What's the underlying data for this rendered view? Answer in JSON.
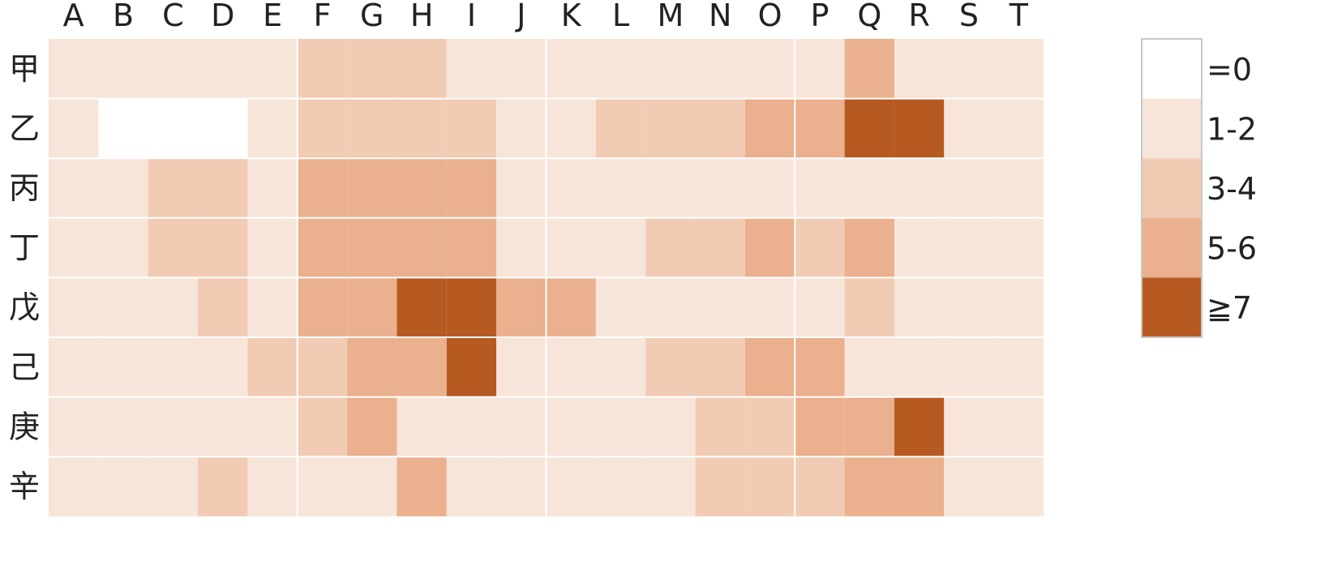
{
  "chart_data": {
    "type": "heatmap",
    "title": "",
    "xlabel": "",
    "ylabel": "",
    "x_labels": [
      "A",
      "B",
      "C",
      "D",
      "E",
      "F",
      "G",
      "H",
      "I",
      "J",
      "K",
      "L",
      "M",
      "N",
      "O",
      "P",
      "Q",
      "R",
      "S",
      "T"
    ],
    "y_labels": [
      "甲",
      "乙",
      "丙",
      "丁",
      "戊",
      "己",
      "庚",
      "辛"
    ],
    "levels": [
      {
        "label": "=0",
        "color": "#ffffff"
      },
      {
        "label": "1-2",
        "color": "#f7e5da"
      },
      {
        "label": "3-4",
        "color": "#f1cbb3"
      },
      {
        "label": "5-6",
        "color": "#ebb08d"
      },
      {
        "label": "≧7",
        "color": "#b65a22"
      }
    ],
    "level_matrix": [
      [
        1,
        1,
        1,
        1,
        1,
        2,
        2,
        2,
        1,
        1,
        1,
        1,
        1,
        1,
        1,
        1,
        3,
        1,
        1,
        1
      ],
      [
        1,
        0,
        0,
        0,
        1,
        2,
        2,
        2,
        2,
        1,
        1,
        2,
        2,
        2,
        3,
        3,
        4,
        4,
        1,
        1
      ],
      [
        1,
        1,
        2,
        2,
        1,
        3,
        3,
        3,
        3,
        1,
        1,
        1,
        1,
        1,
        1,
        1,
        1,
        1,
        1,
        1
      ],
      [
        1,
        1,
        2,
        2,
        1,
        3,
        3,
        3,
        3,
        1,
        1,
        1,
        2,
        2,
        3,
        2,
        3,
        1,
        1,
        1
      ],
      [
        1,
        1,
        1,
        2,
        1,
        3,
        3,
        4,
        4,
        3,
        3,
        1,
        1,
        1,
        1,
        1,
        2,
        1,
        1,
        1
      ],
      [
        1,
        1,
        1,
        1,
        2,
        2,
        3,
        3,
        4,
        1,
        1,
        1,
        2,
        2,
        3,
        3,
        1,
        1,
        1,
        1
      ],
      [
        1,
        1,
        1,
        1,
        1,
        2,
        3,
        1,
        1,
        1,
        1,
        1,
        1,
        2,
        2,
        3,
        3,
        4,
        1,
        1
      ],
      [
        1,
        1,
        1,
        2,
        1,
        1,
        1,
        3,
        1,
        1,
        1,
        1,
        1,
        2,
        2,
        2,
        3,
        3,
        1,
        1
      ]
    ],
    "legend": "right",
    "grid": false
  }
}
